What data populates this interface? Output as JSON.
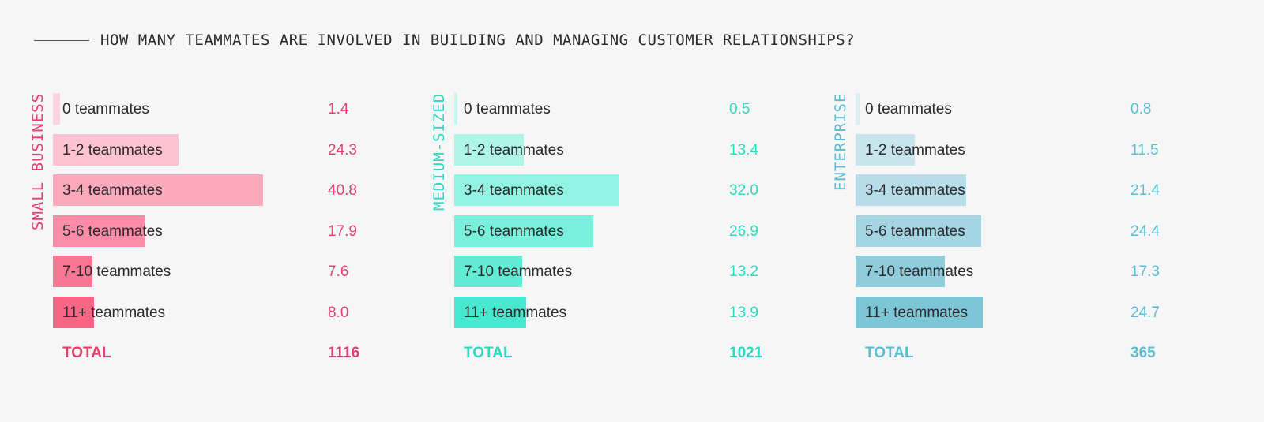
{
  "title": "HOW MANY TEAMMATES ARE INVOLVED IN BUILDING AND MANAGING CUSTOMER RELATIONSHIPS?",
  "chart_data": [
    {
      "type": "bar",
      "orientation": "horizontal",
      "segment": "SMALL BUSINESS",
      "accent": "#e5416d",
      "bar_colors": [
        "#fcd3de",
        "#fdc3d1",
        "#fca9bc",
        "#fb8ca7",
        "#f97795",
        "#f86585"
      ],
      "categories": [
        "0 teammates",
        "1-2 teammates",
        "3-4 teammates",
        "5-6 teammates",
        "7-10 teammates",
        "11+ teammates"
      ],
      "values": [
        1.4,
        24.3,
        40.8,
        17.9,
        7.6,
        8.0
      ],
      "value_labels": [
        "1.4",
        "24.3",
        "40.8",
        "17.9",
        "7.6",
        "8.0"
      ],
      "total_label": "TOTAL",
      "total": "1116"
    },
    {
      "type": "bar",
      "orientation": "horizontal",
      "segment": "MEDIUM-SIZED",
      "accent": "#2fd9bf",
      "bar_colors": [
        "#c6f7ee",
        "#aef5e8",
        "#91f3e2",
        "#79f0dc",
        "#62ecd6",
        "#46e9d0"
      ],
      "categories": [
        "0 teammates",
        "1-2 teammates",
        "3-4 teammates",
        "5-6 teammates",
        "7-10 teammates",
        "11+ teammates"
      ],
      "values": [
        0.5,
        13.4,
        32.0,
        26.9,
        13.2,
        13.9
      ],
      "value_labels": [
        "0.5",
        "13.4",
        "32.0",
        "26.9",
        "13.2",
        "13.9"
      ],
      "total_label": "TOTAL",
      "total": "1021"
    },
    {
      "type": "bar",
      "orientation": "horizontal",
      "segment": "ENTERPRISE",
      "accent": "#5bbdd1",
      "bar_colors": [
        "#dceef4",
        "#c8e5ee",
        "#b6dde9",
        "#a3d5e3",
        "#8fcddd",
        "#7cc6d8"
      ],
      "categories": [
        "0 teammates",
        "1-2 teammates",
        "3-4 teammates",
        "5-6 teammates",
        "7-10 teammates",
        "11+ teammates"
      ],
      "values": [
        0.8,
        11.5,
        21.4,
        24.4,
        17.3,
        24.7
      ],
      "value_labels": [
        "0.8",
        "11.5",
        "21.4",
        "24.4",
        "17.3",
        "24.7"
      ],
      "total_label": "TOTAL",
      "total": "365"
    }
  ]
}
